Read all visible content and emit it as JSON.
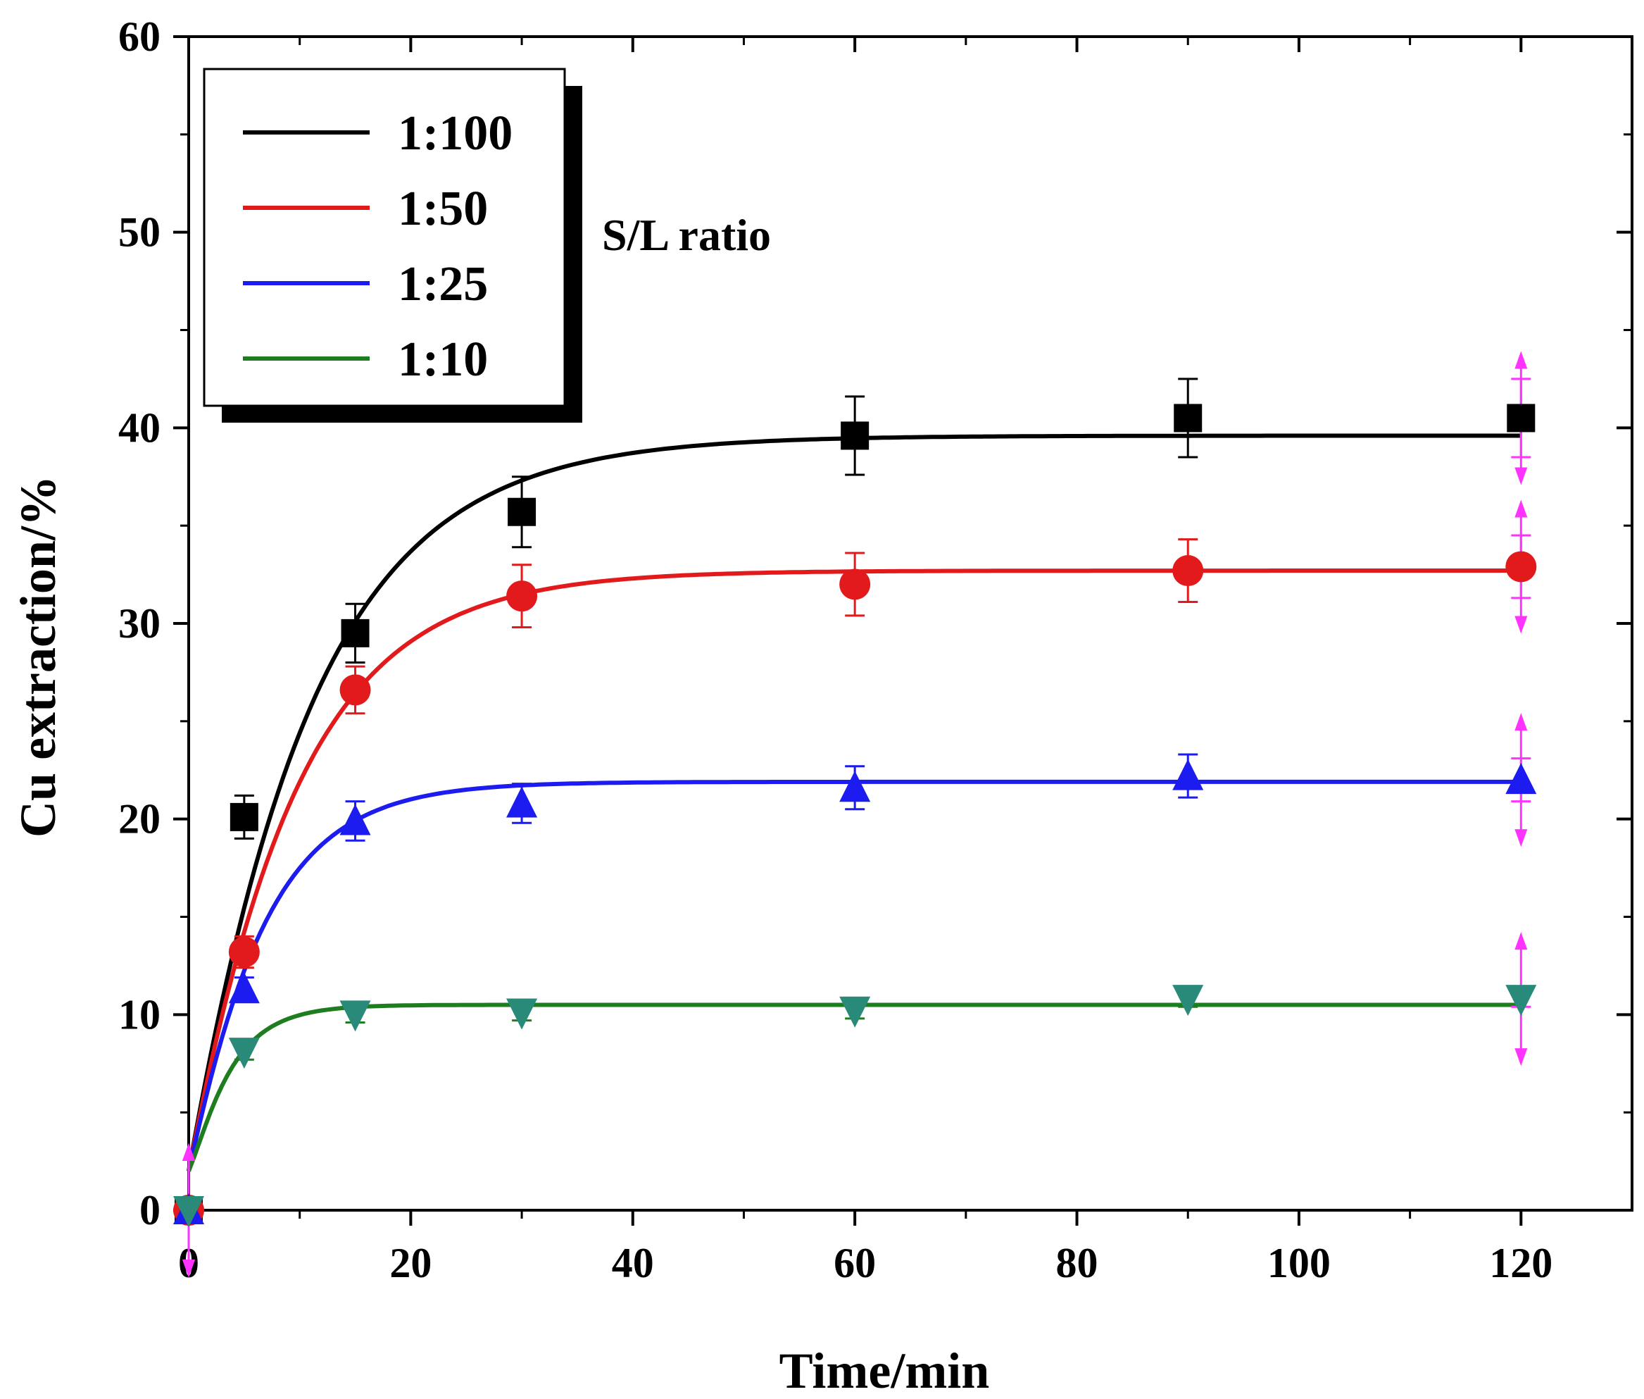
{
  "chart_data": {
    "type": "line",
    "title": "",
    "xlabel": "Time/min",
    "ylabel": "Cu extraction/%",
    "xlim": [
      0,
      130
    ],
    "ylim": [
      0,
      60
    ],
    "xticks": [
      0,
      20,
      40,
      60,
      80,
      100,
      120
    ],
    "xtick_labels": [
      "0",
      "20",
      "40",
      "60",
      "80",
      "100",
      "120"
    ],
    "yticks": [
      0,
      10,
      20,
      30,
      40,
      50,
      60
    ],
    "ytick_labels": [
      "0",
      "10",
      "20",
      "30",
      "40",
      "50",
      "60"
    ],
    "grid": false,
    "legend_position": "top-left",
    "annotation": "S/L ratio",
    "series": [
      {
        "name": "1:100",
        "color": "#000000",
        "marker": "square",
        "x": [
          0,
          5,
          15,
          30,
          60,
          90,
          120
        ],
        "y": [
          0,
          20.1,
          29.5,
          35.7,
          39.6,
          40.5,
          40.5
        ],
        "yerr": [
          0,
          1.1,
          1.5,
          1.8,
          2.0,
          2.0,
          2.0
        ],
        "fit": {
          "model": "first-order",
          "max": 39.6,
          "k": 0.095
        }
      },
      {
        "name": "1:50",
        "color": "#e31a1c",
        "marker": "circle",
        "x": [
          0,
          5,
          15,
          30,
          60,
          90,
          120
        ],
        "y": [
          0,
          13.2,
          26.6,
          31.4,
          32.0,
          32.7,
          32.9
        ],
        "yerr": [
          0,
          0.8,
          1.2,
          1.6,
          1.6,
          1.6,
          1.6
        ],
        "fit": {
          "model": "first-order",
          "max": 32.7,
          "k": 0.11
        }
      },
      {
        "name": "1:25",
        "color": "#1c1cf0",
        "marker": "triangle-up",
        "x": [
          0,
          5,
          15,
          30,
          60,
          90,
          120
        ],
        "y": [
          0,
          11.3,
          19.9,
          20.8,
          21.6,
          22.2,
          22.0
        ],
        "yerr": [
          0,
          0.6,
          1.0,
          1.0,
          1.1,
          1.1,
          1.1
        ],
        "fit": {
          "model": "first-order",
          "max": 21.9,
          "k": 0.16
        }
      },
      {
        "name": "1:10",
        "color": "#1e7d1e",
        "marker": "triangle-down",
        "x": [
          0,
          5,
          15,
          30,
          60,
          90,
          120
        ],
        "y": [
          0,
          8.1,
          10.0,
          10.1,
          10.2,
          10.8,
          10.8
        ],
        "yerr": [
          0,
          0.4,
          0.4,
          0.4,
          0.4,
          0.4,
          0.4
        ],
        "fit": {
          "model": "first-order",
          "max": 10.5,
          "k": 0.3
        }
      }
    ]
  }
}
